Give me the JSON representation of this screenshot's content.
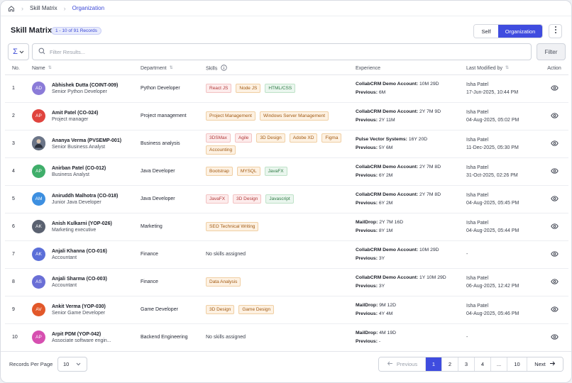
{
  "breadcrumb": {
    "items": [
      "Skill Matrix",
      "Organization"
    ]
  },
  "header": {
    "title": "Skill Matrix",
    "record_badge": "1 - 10 of 91 Records",
    "toggle_self": "Self",
    "toggle_org": "Organization"
  },
  "filter": {
    "placeholder": "Filter Results...",
    "button": "Filter"
  },
  "table": {
    "columns": [
      "No.",
      "Name",
      "Department",
      "Skills",
      "Experience",
      "Last Modified by",
      "Action"
    ],
    "rows": [
      {
        "no": "1",
        "initials": "AD",
        "avatar_color": "#8b7bd8",
        "name": "Abhishek Dutta (COINT-009)",
        "role": "Senior Python Developer",
        "department": "Python Developer",
        "skills": [
          {
            "label": "React JS",
            "tone": "red"
          },
          {
            "label": "Node JS",
            "tone": "orange"
          },
          {
            "label": "HTML/CSS",
            "tone": "green"
          }
        ],
        "experience": [
          {
            "label": "CollabCRM Demo Account:",
            "value": "10M 29D"
          },
          {
            "label": "Previous:",
            "value": "6M"
          }
        ],
        "modified_by": "Isha Patel",
        "modified_at": "17-Jun-2025, 10:44 PM"
      },
      {
        "no": "2",
        "initials": "AP",
        "avatar_color": "#e0443e",
        "name": "Amit Patel (CO-024)",
        "role": "Project manager",
        "department": "Project management",
        "skills": [
          {
            "label": "Project Management",
            "tone": "orange"
          },
          {
            "label": "Windows Server Management",
            "tone": "orange"
          }
        ],
        "experience": [
          {
            "label": "CollabCRM Demo Account:",
            "value": "2Y 7M 9D"
          },
          {
            "label": "Previous:",
            "value": "2Y 11M"
          }
        ],
        "modified_by": "Isha Patel",
        "modified_at": "04-Aug-2025, 05:02 PM"
      },
      {
        "no": "3",
        "initials": "",
        "avatar_color": "#4a5566",
        "name": "Ananya Verma (PVSEMP-001)",
        "role": "Senior Business Analyst",
        "department": "Business analysis",
        "skills": [
          {
            "label": "3DSMax",
            "tone": "red"
          },
          {
            "label": "Agile",
            "tone": "red"
          },
          {
            "label": "3D Design",
            "tone": "orange"
          },
          {
            "label": "Adobe XD",
            "tone": "orange"
          },
          {
            "label": "Figma",
            "tone": "orange"
          },
          {
            "label": "Accounting",
            "tone": "orange"
          }
        ],
        "experience": [
          {
            "label": "Pulse Vector Systems:",
            "value": "16Y 20D"
          },
          {
            "label": "Previous:",
            "value": "5Y 6M"
          }
        ],
        "modified_by": "Isha Patel",
        "modified_at": "11-Dec-2025, 05:30 PM"
      },
      {
        "no": "4",
        "initials": "AP",
        "avatar_color": "#3fae6a",
        "name": "Anirban Patel (CO-012)",
        "role": "Business Analyst",
        "department": "Java Developer",
        "skills": [
          {
            "label": "Bootstrap",
            "tone": "orange"
          },
          {
            "label": "MYSQL",
            "tone": "orange"
          },
          {
            "label": "JavaFX",
            "tone": "green"
          }
        ],
        "experience": [
          {
            "label": "CollabCRM Demo Account:",
            "value": "2Y 7M 8D"
          },
          {
            "label": "Previous:",
            "value": "6Y 2M"
          }
        ],
        "modified_by": "Isha Patel",
        "modified_at": "31-Oct-2025, 02:26 PM"
      },
      {
        "no": "5",
        "initials": "AM",
        "avatar_color": "#3d8fe0",
        "name": "Aniruddh Malhotra (CO-018)",
        "role": "Junior Java Developer",
        "department": "Java Developer",
        "skills": [
          {
            "label": "JavaFX",
            "tone": "red"
          },
          {
            "label": "3D Design",
            "tone": "red"
          },
          {
            "label": "Javascript",
            "tone": "green"
          }
        ],
        "experience": [
          {
            "label": "CollabCRM Demo Account:",
            "value": "2Y 7M 8D"
          },
          {
            "label": "Previous:",
            "value": "6Y 2M"
          }
        ],
        "modified_by": "Isha Patel",
        "modified_at": "04-Aug-2025, 05:45 PM"
      },
      {
        "no": "6",
        "initials": "AK",
        "avatar_color": "#5a6170",
        "name": "Anish Kulkarni (YOP-026)",
        "role": "Marketing executive",
        "department": "Marketing",
        "skills": [
          {
            "label": "SEO Technical Writing",
            "tone": "orange"
          }
        ],
        "experience": [
          {
            "label": "MailDrop:",
            "value": "2Y 7M 16D"
          },
          {
            "label": "Previous:",
            "value": "8Y 1M"
          }
        ],
        "modified_by": "Isha Patel",
        "modified_at": "04-Aug-2025, 05:44 PM"
      },
      {
        "no": "7",
        "initials": "AK",
        "avatar_color": "#5b6fd8",
        "name": "Anjali Khanna (CO-016)",
        "role": "Accountant",
        "department": "Finance",
        "skills": [],
        "no_skills": "No skills assigned",
        "experience": [
          {
            "label": "CollabCRM Demo Account:",
            "value": "10M 29D"
          },
          {
            "label": "Previous:",
            "value": "3Y"
          }
        ],
        "modified_by": "-",
        "modified_at": ""
      },
      {
        "no": "8",
        "initials": "AS",
        "avatar_color": "#6a6fd6",
        "name": "Anjali Sharma (CO-003)",
        "role": "Accountant",
        "department": "Finance",
        "skills": [
          {
            "label": "Data Analysis",
            "tone": "orange"
          }
        ],
        "experience": [
          {
            "label": "CollabCRM Demo Account:",
            "value": "1Y 10M 29D"
          },
          {
            "label": "Previous:",
            "value": "3Y"
          }
        ],
        "modified_by": "Isha Patel",
        "modified_at": "06-Aug-2025, 12:42 PM"
      },
      {
        "no": "9",
        "initials": "AV",
        "avatar_color": "#e2582a",
        "name": "Ankit Verma (YOP-030)",
        "role": "Senior Game Developer",
        "department": "Game Developer",
        "skills": [
          {
            "label": "3D Design",
            "tone": "orange"
          },
          {
            "label": "Game Design",
            "tone": "orange"
          }
        ],
        "experience": [
          {
            "label": "MailDrop:",
            "value": "9M 12D"
          },
          {
            "label": "Previous:",
            "value": "4Y 4M"
          }
        ],
        "modified_by": "Isha Patel",
        "modified_at": "04-Aug-2025, 05:46 PM"
      },
      {
        "no": "10",
        "initials": "AP",
        "avatar_color": "#d64fb0",
        "name": "Arpit PDM (YOP-042)",
        "role": "Associate software engin...",
        "department": "Backend Engineering",
        "skills": [],
        "no_skills": "No skills assigned",
        "experience": [
          {
            "label": "MailDrop:",
            "value": "4M 19D"
          },
          {
            "label": "Previous:",
            "value": "-"
          }
        ],
        "modified_by": "-",
        "modified_at": ""
      }
    ]
  },
  "footer": {
    "records_per_page_label": "Records Per Page",
    "records_per_page": "10",
    "pagination": {
      "previous": "Previous",
      "pages": [
        "1",
        "2",
        "3",
        "4",
        "...",
        "10"
      ],
      "current": "1",
      "next": "Next"
    }
  },
  "colors": {
    "accent": "#3f4cdf",
    "tag_red": "#b23a3a",
    "tag_orange": "#a25a12",
    "tag_green": "#2e7a44"
  },
  "icons": {
    "home": "home-icon",
    "sigma": "sigma-icon",
    "search": "search-icon",
    "kebab": "kebab-icon",
    "info": "info-icon",
    "view": "eye-icon"
  }
}
